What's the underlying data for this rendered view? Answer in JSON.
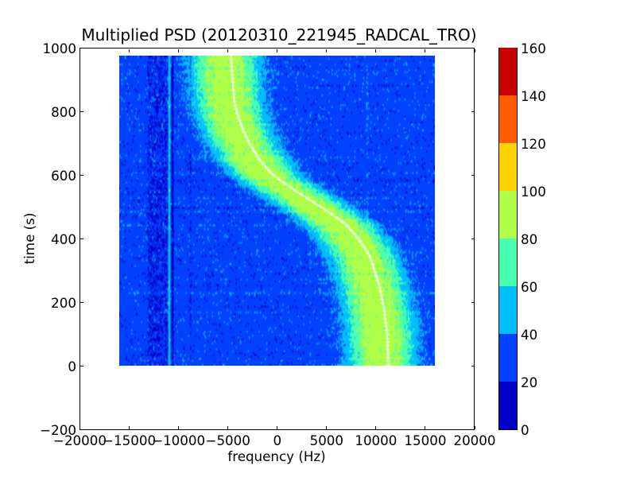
{
  "chart_data": {
    "type": "heatmap",
    "title": "Multiplied PSD (20120310_221945_RADCAL_TRO)",
    "xlabel": "frequency (Hz)",
    "ylabel": "time (s)",
    "xlim": [
      -20000,
      20000
    ],
    "ylim": [
      -200,
      1000
    ],
    "xticks": [
      -20000,
      -15000,
      -10000,
      -5000,
      0,
      5000,
      10000,
      15000,
      20000
    ],
    "xtick_labels": [
      "−20000",
      "−15000",
      "−10000",
      "−5000",
      "0",
      "5000",
      "10000",
      "15000",
      "20000"
    ],
    "yticks": [
      -200,
      0,
      200,
      400,
      600,
      800,
      1000
    ],
    "ytick_labels": [
      "−200",
      "0",
      "200",
      "400",
      "600",
      "800",
      "1000"
    ],
    "image_extent": {
      "freq": [
        -16000,
        16000
      ],
      "time": [
        0,
        975
      ]
    },
    "grid": {
      "cols": 290,
      "rows": 160
    },
    "colormap": {
      "name": "jet-discrete",
      "levels": [
        0,
        20,
        40,
        60,
        80,
        100,
        120,
        140,
        160
      ],
      "colors": [
        "#0000C8",
        "#0040FF",
        "#00BFFF",
        "#48FFAF",
        "#AFFF48",
        "#FFD200",
        "#FF5C00",
        "#C80000"
      ]
    },
    "colorbar": {
      "ticks": [
        0,
        20,
        40,
        60,
        80,
        100,
        120,
        140,
        160
      ],
      "tick_labels": [
        "0",
        "20",
        "40",
        "60",
        "80",
        "100",
        "120",
        "140",
        "160"
      ]
    },
    "background_noise": {
      "mean": 30,
      "sigma": 5.4,
      "dark_region": {
        "freq": [
          -13100,
          -10950
        ],
        "mean": 22.5,
        "sigma": 9.5
      },
      "row_streak_sigma": 2.0
    },
    "vertical_lines": [
      {
        "freq": -10900,
        "halfwidth": 95,
        "kind": "bright",
        "value": 50,
        "jitter": 5.5
      },
      {
        "freq": -10600,
        "halfwidth": 110,
        "kind": "dark",
        "value": 13,
        "jitter": 7
      },
      {
        "freq": -8760,
        "halfwidth": 70,
        "kind": "offset",
        "offset": -8
      },
      {
        "freq": 9140,
        "halfwidth": 80,
        "kind": "offset",
        "offset": 6.5
      },
      {
        "freq": 3330,
        "halfwidth": 70,
        "kind": "offset",
        "offset": 4
      }
    ],
    "band": {
      "amplitude": 63,
      "width_hz": 3300,
      "center_offset_hz": -650,
      "exponent": 2.8,
      "extra_noise_sigma": 1.2,
      "row_noise_sigma": 3,
      "col_noise_sigma": 2.5
    },
    "ridge_line": {
      "color": "#ffffff",
      "marker": "plus",
      "marker_interval_s": 12.2,
      "marker_size_px": 5,
      "points_t": [
        0,
        100,
        200,
        300,
        350,
        400,
        450,
        500,
        550,
        600,
        700,
        800,
        900,
        975
      ],
      "points_f": [
        11280,
        11150,
        10700,
        9900,
        9300,
        8200,
        6700,
        4400,
        1900,
        -400,
        -2800,
        -4100,
        -4500,
        -4650
      ]
    },
    "noise_seed": 1234567
  }
}
